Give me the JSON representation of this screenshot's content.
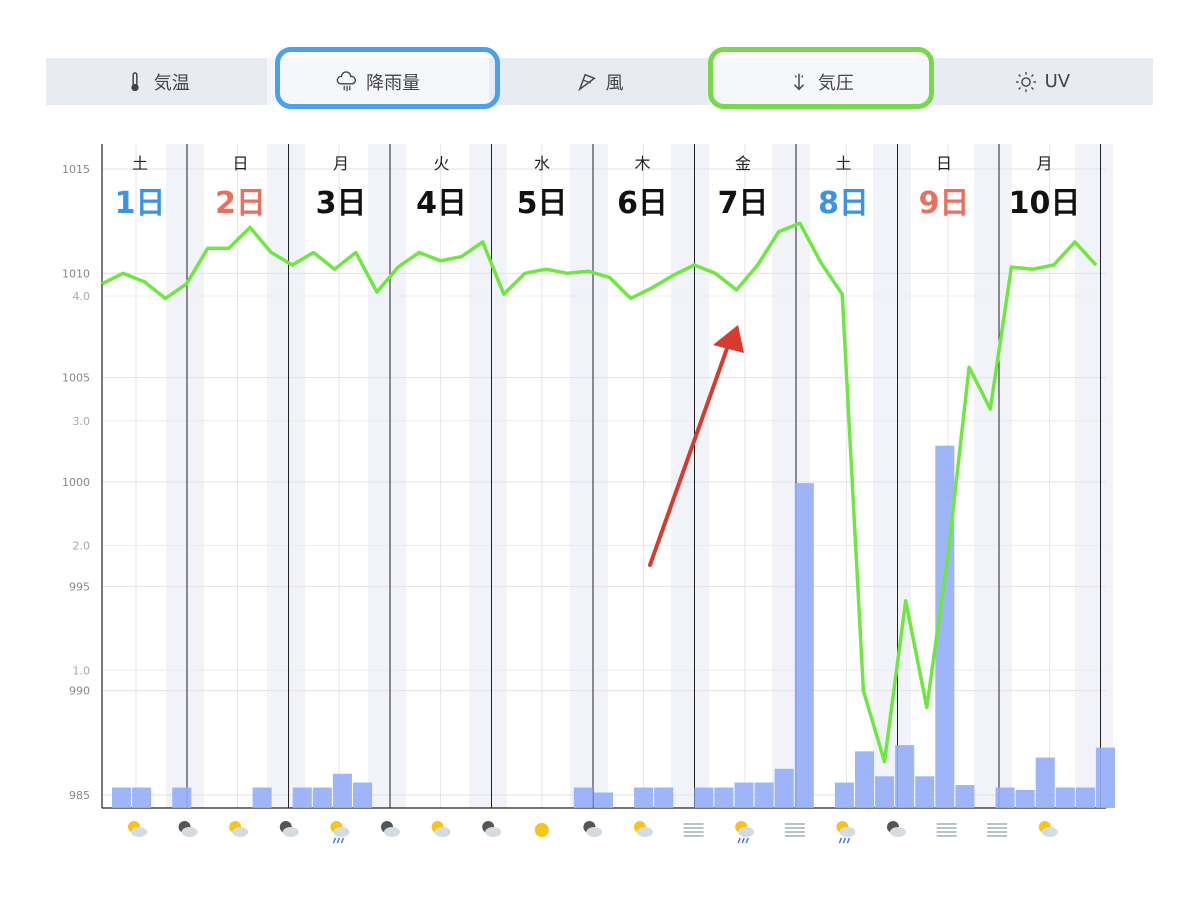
{
  "tabs": [
    {
      "label": "気温",
      "icon": "thermometer-icon"
    },
    {
      "label": "降雨量",
      "icon": "rain-cloud-icon"
    },
    {
      "label": "風",
      "icon": "wind-icon"
    },
    {
      "label": "気圧",
      "icon": "pressure-icon"
    },
    {
      "label": "UV",
      "icon": "sun-icon"
    }
  ],
  "days": [
    {
      "dow": "土",
      "date": "1日",
      "color": "#3b93e6"
    },
    {
      "dow": "日",
      "date": "2日",
      "color": "#e8705c"
    },
    {
      "dow": "月",
      "date": "3日",
      "color": "#111111"
    },
    {
      "dow": "火",
      "date": "4日",
      "color": "#111111"
    },
    {
      "dow": "水",
      "date": "5日",
      "color": "#111111"
    },
    {
      "dow": "木",
      "date": "6日",
      "color": "#111111"
    },
    {
      "dow": "金",
      "date": "7日",
      "color": "#111111"
    },
    {
      "dow": "土",
      "date": "8日",
      "color": "#3b93e6"
    },
    {
      "dow": "日",
      "date": "9日",
      "color": "#e8705c"
    },
    {
      "dow": "月",
      "date": "10日",
      "color": "#111111"
    }
  ],
  "colors": {
    "pressure_line": "#6ee840",
    "rain_bar": "#94aef7",
    "arrow": "#d93a2b",
    "highlight_blue": "#4aa2ee",
    "highlight_green": "#76d84b"
  },
  "chart_data": {
    "type": "line",
    "pressure_axis": {
      "ticks": [
        "1015",
        "1010",
        "1005",
        "1000",
        "995",
        "990",
        "985"
      ],
      "ylim": [
        985,
        1015
      ]
    },
    "rain_axis": {
      "ticks": [
        "4.0",
        "3.0",
        "2.0",
        "1.0",
        "0"
      ],
      "ylim": [
        0,
        4.0
      ]
    },
    "series": [
      {
        "values": [
          1009.5,
          1010.0,
          1009.6,
          1008.8,
          1009.5,
          1011.2,
          1011.2,
          1012.2,
          1011.0,
          1010.4,
          1011.0,
          1010.2,
          1011.0,
          1009.1,
          1010.3,
          1011.0,
          1010.6,
          1010.8,
          1011.5,
          1009.0,
          1010.0,
          1010.2,
          1010.0,
          1010.1,
          1009.8,
          1008.8,
          1009.3,
          1009.9,
          1010.4,
          1010.0,
          1009.2,
          1010.4,
          1012.0,
          1012.4,
          1010.5,
          1009.0,
          990.0,
          986.6,
          994.3,
          989.2,
          996.5,
          1005.5,
          1003.5,
          1010.3,
          1010.2,
          1010.4,
          1011.5,
          1010.4
        ]
      },
      {
        "values": [
          0.06,
          0.06,
          0,
          0.06,
          0,
          0,
          0,
          0.06,
          0,
          0.06,
          0.06,
          0.17,
          0.1,
          0,
          0,
          0,
          0,
          0,
          0,
          0,
          0,
          0,
          0,
          0.06,
          0.02,
          0,
          0.06,
          0.06,
          0,
          0.06,
          0.06,
          0.1,
          0.1,
          0.21,
          2.5,
          0,
          0.1,
          0.35,
          0.15,
          0.4,
          0.15,
          2.8,
          0.08,
          0,
          0.06,
          0.04,
          0.3,
          0.06,
          0.06,
          0.38
        ]
      }
    ]
  },
  "weather_icons": [
    "sun-cloud-icon",
    "moon-cloud-icon",
    "sun-cloud-icon",
    "moon-cloud-icon",
    "sun-rain-icon",
    "moon-cloud-icon",
    "sun-cloud-icon",
    "moon-cloud-icon",
    "sun-icon",
    "moon-cloud-icon",
    "sun-cloud-icon",
    "fog-icon",
    "sun-rain-icon",
    "fog-icon",
    "sun-rain-icon",
    "moon-cloud-icon",
    "fog-icon",
    "fog-icon",
    "sun-cloud-icon"
  ]
}
